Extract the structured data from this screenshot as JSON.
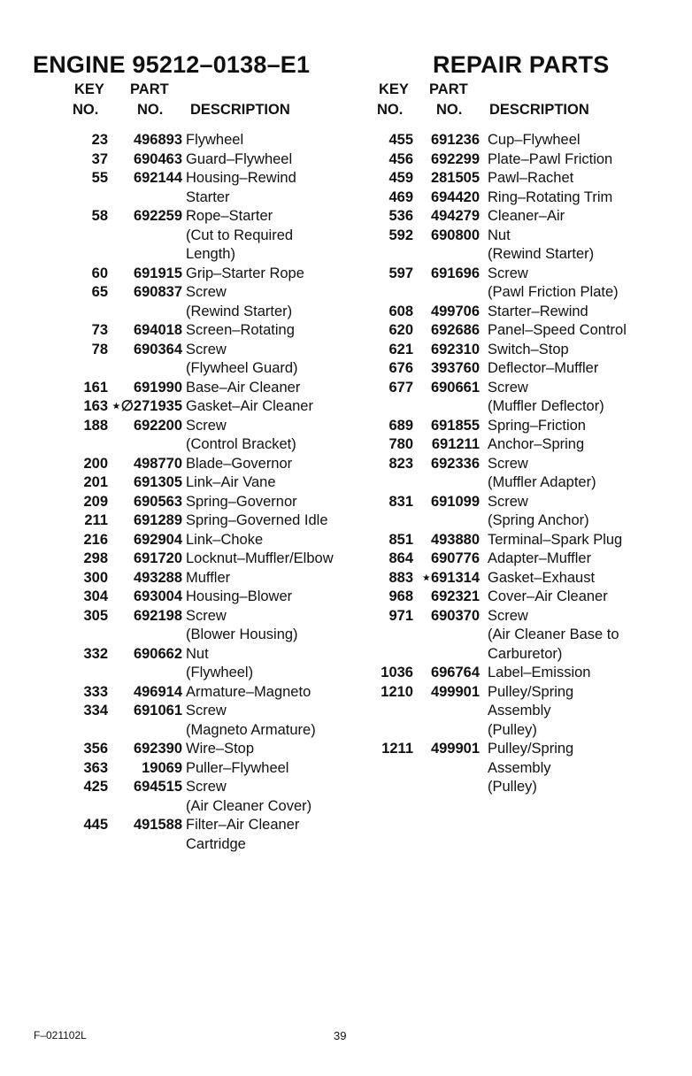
{
  "header": {
    "title_left": "ENGINE 95212–0138–E1",
    "title_right": "REPAIR PARTS"
  },
  "columns_header": {
    "key_line1": "KEY",
    "key_line2": "NO.",
    "part_line1": "PART",
    "part_line2": "NO.",
    "description": "DESCRIPTION"
  },
  "left_column": [
    {
      "key": "23",
      "part": "496893",
      "desc": [
        "Flywheel"
      ]
    },
    {
      "key": "37",
      "part": "690463",
      "desc": [
        "Guard–Flywheel"
      ]
    },
    {
      "key": "55",
      "part": "692144",
      "desc": [
        "Housing–Rewind",
        "Starter"
      ]
    },
    {
      "key": "58",
      "part": "692259",
      "desc": [
        "Rope–Starter",
        "(Cut to Required",
        "Length)"
      ]
    },
    {
      "key": "60",
      "part": "691915",
      "desc": [
        "Grip–Starter Rope"
      ]
    },
    {
      "key": "65",
      "part": "690837",
      "desc": [
        "Screw",
        "(Rewind Starter)"
      ]
    },
    {
      "key": "73",
      "part": "694018",
      "desc": [
        "Screen–Rotating"
      ]
    },
    {
      "key": "78",
      "part": "690364",
      "desc": [
        "Screw",
        "(Flywheel Guard)"
      ]
    },
    {
      "key": "161",
      "part": "691990",
      "desc": [
        "Base–Air Cleaner"
      ]
    },
    {
      "key": "163",
      "part": "⋆∅271935",
      "desc": [
        "Gasket–Air Cleaner"
      ]
    },
    {
      "key": "188",
      "part": "692200",
      "desc": [
        "Screw",
        "(Control Bracket)"
      ]
    },
    {
      "key": "200",
      "part": "498770",
      "desc": [
        "Blade–Governor"
      ]
    },
    {
      "key": "201",
      "part": "691305",
      "desc": [
        "Link–Air Vane"
      ]
    },
    {
      "key": "209",
      "part": "690563",
      "desc": [
        "Spring–Governor"
      ]
    },
    {
      "key": "211",
      "part": "691289",
      "desc": [
        "Spring–Governed Idle"
      ]
    },
    {
      "key": "216",
      "part": "692904",
      "desc": [
        "Link–Choke"
      ]
    },
    {
      "key": "298",
      "part": "691720",
      "desc": [
        "Locknut–Muffler/Elbow"
      ]
    },
    {
      "key": "300",
      "part": "493288",
      "desc": [
        "Muffler"
      ]
    },
    {
      "key": "304",
      "part": "693004",
      "desc": [
        "Housing–Blower"
      ]
    },
    {
      "key": "305",
      "part": "692198",
      "desc": [
        "Screw",
        "(Blower Housing)"
      ]
    },
    {
      "key": "332",
      "part": "690662",
      "desc": [
        "Nut",
        "(Flywheel)"
      ]
    },
    {
      "key": "333",
      "part": "496914",
      "desc": [
        "Armature–Magneto"
      ]
    },
    {
      "key": "334",
      "part": "691061",
      "desc": [
        "Screw",
        "(Magneto Armature)"
      ]
    },
    {
      "key": "356",
      "part": "692390",
      "desc": [
        "Wire–Stop"
      ]
    },
    {
      "key": "363",
      "part": "19069",
      "desc": [
        "Puller–Flywheel"
      ]
    },
    {
      "key": "425",
      "part": "694515",
      "desc": [
        "Screw",
        "(Air Cleaner Cover)"
      ]
    },
    {
      "key": "445",
      "part": "491588",
      "desc": [
        "Filter–Air Cleaner",
        "Cartridge"
      ]
    }
  ],
  "right_column": [
    {
      "key": "455",
      "part": "691236",
      "desc": [
        "Cup–Flywheel"
      ]
    },
    {
      "key": "456",
      "part": "692299",
      "desc": [
        "Plate–Pawl Friction"
      ]
    },
    {
      "key": "459",
      "part": "281505",
      "desc": [
        "Pawl–Rachet"
      ]
    },
    {
      "key": "469",
      "part": "694420",
      "desc": [
        "Ring–Rotating Trim"
      ]
    },
    {
      "key": "536",
      "part": "494279",
      "desc": [
        "Cleaner–Air"
      ]
    },
    {
      "key": "592",
      "part": "690800",
      "desc": [
        "Nut",
        "(Rewind Starter)"
      ]
    },
    {
      "key": "597",
      "part": "691696",
      "desc": [
        "Screw",
        "(Pawl Friction Plate)"
      ]
    },
    {
      "key": "608",
      "part": "499706",
      "desc": [
        "Starter–Rewind"
      ]
    },
    {
      "key": "620",
      "part": "692686",
      "desc": [
        "Panel–Speed Control"
      ]
    },
    {
      "key": "621",
      "part": "692310",
      "desc": [
        "Switch–Stop"
      ]
    },
    {
      "key": "676",
      "part": "393760",
      "desc": [
        "Deflector–Muffler"
      ]
    },
    {
      "key": "677",
      "part": "690661",
      "desc": [
        "Screw",
        "(Muffler Deflector)"
      ]
    },
    {
      "key": "689",
      "part": "691855",
      "desc": [
        "Spring–Friction"
      ]
    },
    {
      "key": "780",
      "part": "691211",
      "desc": [
        "Anchor–Spring"
      ]
    },
    {
      "key": "823",
      "part": "692336",
      "desc": [
        "Screw",
        "(Muffler Adapter)"
      ]
    },
    {
      "key": "831",
      "part": "691099",
      "desc": [
        "Screw",
        "(Spring Anchor)"
      ]
    },
    {
      "key": "851",
      "part": "493880",
      "desc": [
        "Terminal–Spark Plug"
      ]
    },
    {
      "key": "864",
      "part": "690776",
      "desc": [
        "Adapter–Muffler"
      ]
    },
    {
      "key": "883",
      "part": "⋆691314",
      "desc": [
        "Gasket–Exhaust"
      ]
    },
    {
      "key": "968",
      "part": "692321",
      "desc": [
        "Cover–Air Cleaner"
      ]
    },
    {
      "key": "971",
      "part": "690370",
      "desc": [
        "Screw",
        "(Air Cleaner Base to",
        "Carburetor)"
      ]
    },
    {
      "key": "1036",
      "part": "696764",
      "desc": [
        "Label–Emission"
      ]
    },
    {
      "key": "1210",
      "part": "499901",
      "desc": [
        "Pulley/Spring",
        "Assembly",
        "(Pulley)"
      ]
    },
    {
      "key": "1211",
      "part": "499901",
      "desc": [
        "Pulley/Spring",
        "Assembly",
        "(Pulley)"
      ]
    }
  ],
  "footer": {
    "code": "F–021102L",
    "page_number": "39"
  }
}
